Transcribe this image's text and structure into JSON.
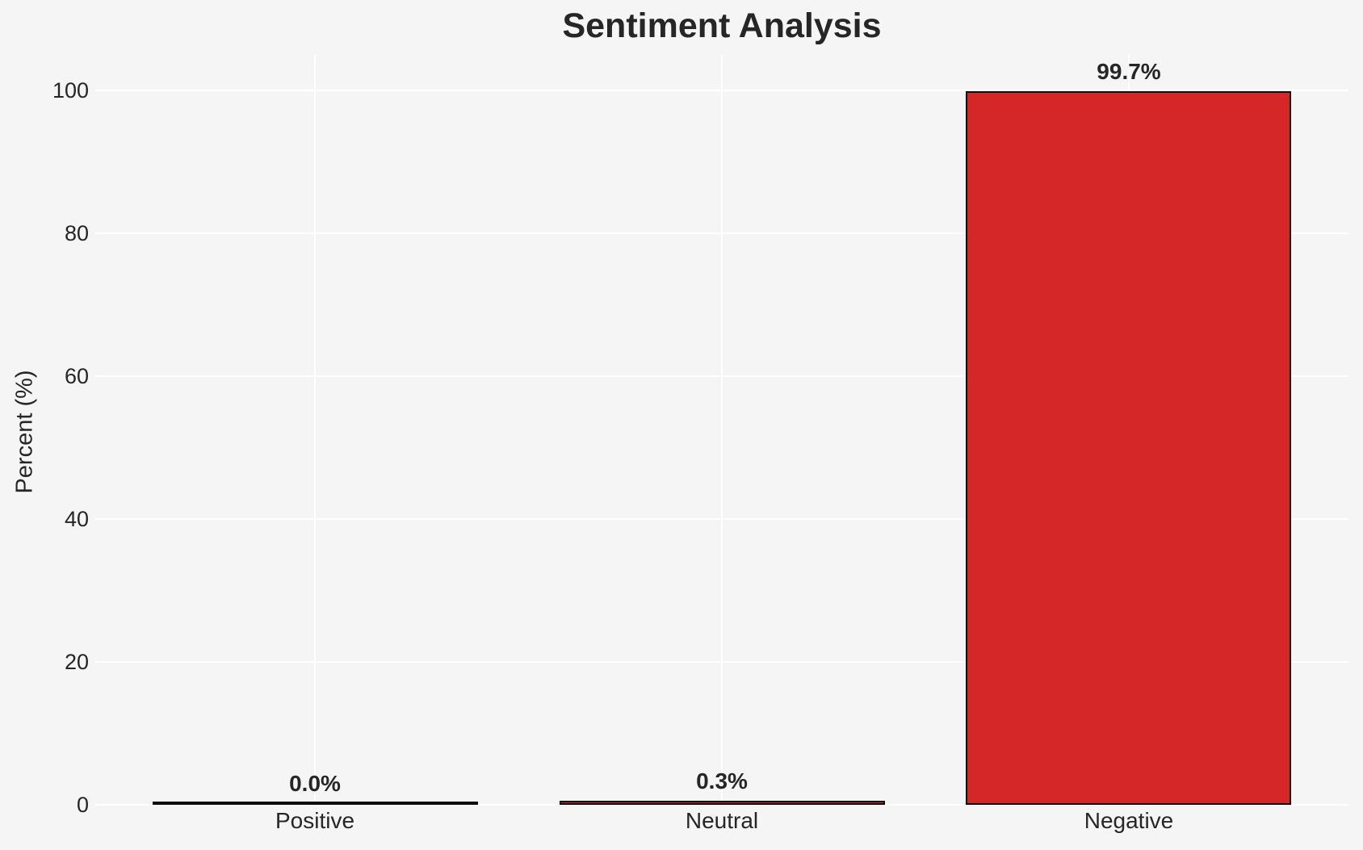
{
  "title": "Sentiment Analysis",
  "chart_data": {
    "type": "bar",
    "title": "Sentiment Analysis",
    "xlabel": "",
    "ylabel": "Percent (%)",
    "categories": [
      "Positive",
      "Neutral",
      "Negative"
    ],
    "values": [
      0.0,
      0.3,
      99.7
    ],
    "value_labels": [
      "0.0%",
      "0.3%",
      "99.7%"
    ],
    "yticks": [
      0,
      20,
      40,
      60,
      80,
      100
    ],
    "ytick_labels": [
      "0",
      "20",
      "40",
      "60",
      "80",
      "100"
    ],
    "ylim": [
      0,
      105
    ],
    "grid": "on",
    "gridline_color": "#ffffff",
    "legend": "none",
    "bar_color": "#d62728",
    "bar_edge_color": "#0a0a0a",
    "background_color": "#f5f5f5",
    "text_color": "#262626"
  }
}
